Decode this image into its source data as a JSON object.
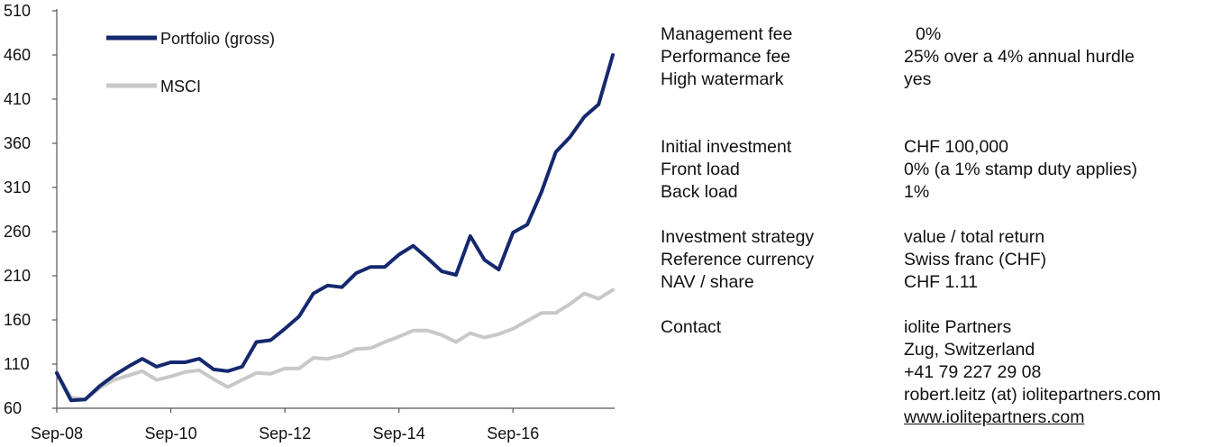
{
  "chart_data": {
    "type": "line",
    "title": "",
    "xlabel": "",
    "ylabel": "",
    "ylim": [
      60,
      510
    ],
    "yticks": [
      60,
      110,
      160,
      210,
      260,
      310,
      360,
      410,
      460,
      510
    ],
    "xtick_labels": [
      "Sep-08",
      "Sep-10",
      "Sep-12",
      "Sep-14",
      "Sep-16"
    ],
    "points_per_year": 4,
    "legend_position": "top-left",
    "series": [
      {
        "name": "Portfolio (gross)",
        "color": "#14286e",
        "values": [
          100,
          69,
          70,
          85,
          97,
          107,
          116,
          107,
          112,
          112,
          116,
          104,
          102,
          107,
          135,
          137,
          150,
          164,
          190,
          199,
          197,
          213,
          220,
          220,
          234,
          244,
          230,
          215,
          211,
          255,
          228,
          217,
          259,
          268,
          305,
          350,
          367,
          390,
          404,
          460
        ]
      },
      {
        "name": "MSCI",
        "color": "#c8c8c8",
        "values": [
          100,
          72,
          70,
          83,
          92,
          97,
          102,
          92,
          96,
          101,
          103,
          93,
          84,
          92,
          100,
          99,
          105,
          105,
          117,
          116,
          120,
          127,
          128,
          135,
          141,
          148,
          148,
          143,
          135,
          145,
          140,
          144,
          150,
          159,
          168,
          168,
          178,
          190,
          184,
          194
        ]
      }
    ]
  },
  "terms": [
    {
      "label": "Management fee",
      "value": "0%"
    },
    {
      "label": "Performance fee",
      "value": "25% over a 4% annual hurdle"
    },
    {
      "label": "High watermark",
      "value": "yes"
    }
  ],
  "investment": [
    {
      "label": "Initial investment",
      "value": "CHF 100,000"
    },
    {
      "label": "Front load",
      "value": "0% (a 1% stamp duty applies)"
    },
    {
      "label": "Back load",
      "value": "1%"
    }
  ],
  "strategy": [
    {
      "label": "Investment strategy",
      "value": "value / total return"
    },
    {
      "label": "Reference currency",
      "value": "Swiss franc (CHF)"
    },
    {
      "label": "NAV / share",
      "value": "CHF 1.11"
    }
  ],
  "contact": {
    "label": "Contact",
    "lines": [
      "iolite Partners",
      "Zug, Switzerland",
      "+41 79 227 29 08",
      "robert.leitz (at) iolitepartners.com"
    ],
    "website": "www.iolitepartners.com"
  }
}
